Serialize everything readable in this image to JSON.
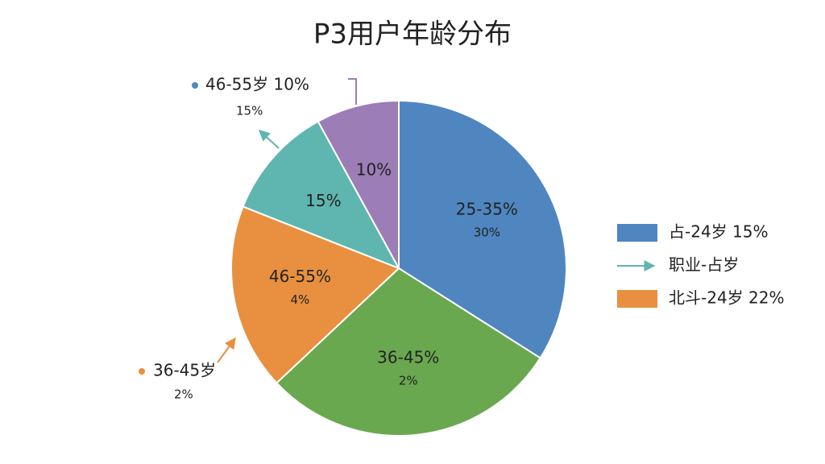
{
  "chart_data": {
    "type": "pie",
    "title": "P3用户年龄分布",
    "categories": [
      "25-35%",
      "36-45%",
      "46-55%",
      "15%",
      "10%"
    ],
    "values": [
      34,
      29,
      18,
      11,
      8
    ],
    "colors": [
      "#4f86bf",
      "#6aa84f",
      "#e8903f",
      "#5fb6b0",
      "#9c7db6"
    ],
    "slice_notes": [
      "30%",
      "2%",
      "4%",
      null,
      null
    ],
    "annotations": [
      {
        "text": "46-55岁 10%",
        "color": "#9c7db6"
      },
      {
        "text": "15%",
        "color": "#5fb6b0"
      },
      {
        "text": "36-45岁",
        "color": "#e8903f"
      },
      {
        "text": "2%",
        "color": "#e8903f"
      }
    ],
    "legend": [
      {
        "text": "占-24岁 15%",
        "color": "#4f86bf"
      },
      {
        "text": "职业-占岁",
        "color": "#5fb6b0"
      },
      {
        "text": "北斗-24岁 22%",
        "color": "#e8903f"
      }
    ]
  }
}
